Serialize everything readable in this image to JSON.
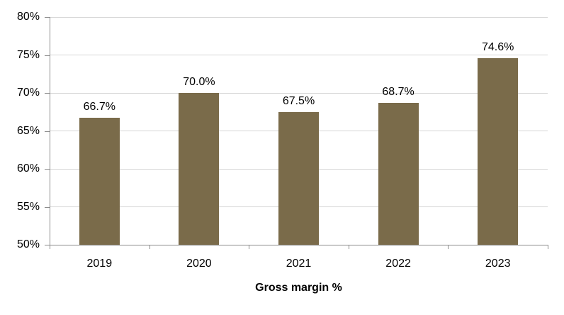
{
  "chart_data": {
    "type": "bar",
    "categories": [
      "2019",
      "2020",
      "2021",
      "2022",
      "2023"
    ],
    "values": [
      66.7,
      70.0,
      67.5,
      68.7,
      74.6
    ],
    "value_labels": [
      "66.7%",
      "70.0%",
      "67.5%",
      "68.7%",
      "74.6%"
    ],
    "title": "",
    "xlabel": "Gross margin %",
    "ylabel": "",
    "ylim": [
      50,
      80
    ],
    "ytick_step": 5,
    "ytick_labels": [
      "50%",
      "55%",
      "60%",
      "65%",
      "70%",
      "75%",
      "80%"
    ],
    "grid": true,
    "legend_position": "none",
    "bar_color": "#7a6b4a",
    "gridline_color": "#d6d6d6",
    "axis_color": "#8c8c8c",
    "text_color": "#000000"
  }
}
